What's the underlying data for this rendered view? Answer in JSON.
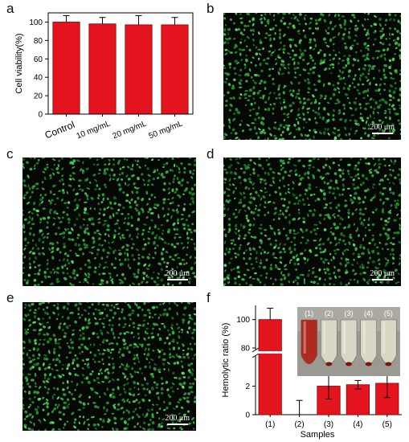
{
  "panels": {
    "a": {
      "letter": "a"
    },
    "b": {
      "letter": "b",
      "scale_label": "200 μm"
    },
    "c": {
      "letter": "c",
      "scale_label": "200 μm"
    },
    "d": {
      "letter": "d",
      "scale_label": "200 μm"
    },
    "e": {
      "letter": "e",
      "scale_label": "200 μm"
    },
    "f": {
      "letter": "f"
    }
  },
  "colors": {
    "bar_fill": "#e3141d",
    "bar_stroke": "#8b0000",
    "cell_green": "#2fbf3c",
    "micro_bg": "#050805"
  },
  "chart_data": [
    {
      "type": "bar",
      "panel": "a",
      "categories": [
        "Control",
        "10 mg/mL",
        "20 mg/mL",
        "50 mg/mL"
      ],
      "values": [
        100,
        98,
        97,
        97
      ],
      "errors": [
        7,
        7,
        10,
        8
      ],
      "xlabel": "",
      "ylabel": "Cell viability(%)",
      "ylim": [
        0,
        110
      ],
      "yticks": [
        0,
        20,
        40,
        60,
        80,
        100
      ]
    },
    {
      "type": "bar",
      "panel": "f",
      "categories": [
        "(1)",
        "(2)",
        "(3)",
        "(4)",
        "(5)"
      ],
      "values": [
        100,
        0,
        2.0,
        2.1,
        2.2
      ],
      "errors": [
        8,
        1.0,
        0.9,
        0.3,
        1.0
      ],
      "xlabel": "Samples",
      "ylabel": "Hemolytic ratio (%)",
      "axis_break": [
        4,
        80
      ],
      "yticks": [
        0,
        2,
        80,
        100
      ],
      "inset_labels": [
        "(1)",
        "(2)",
        "(3)",
        "(4)",
        "(5)"
      ]
    }
  ]
}
